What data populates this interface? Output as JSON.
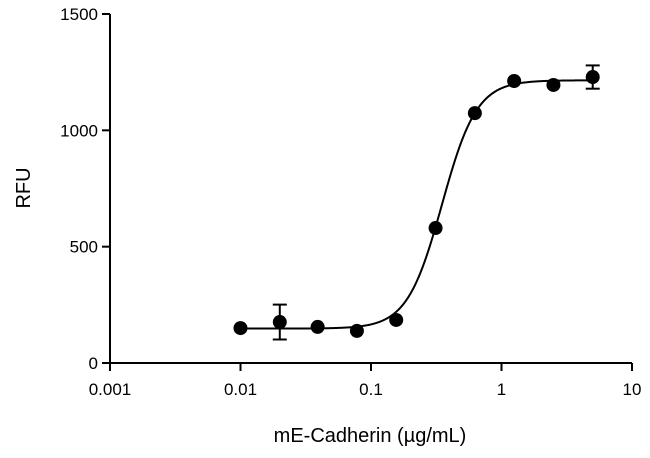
{
  "chart_data": {
    "type": "scatter",
    "xlabel": "mE-Cadherin (µg/mL)",
    "ylabel": "RFU",
    "x": [
      0.01,
      0.02,
      0.039,
      0.078,
      0.156,
      0.3125,
      0.625,
      1.25,
      2.5,
      5
    ],
    "series": [
      {
        "color": "#000000",
        "values": [
          150,
          176,
          155,
          138,
          185,
          580,
          1074,
          1212,
          1195,
          1229
        ],
        "errors": [
          null,
          75,
          null,
          null,
          null,
          null,
          null,
          null,
          null,
          50
        ]
      }
    ],
    "fit": {
      "bottom": 148,
      "top": 1215,
      "ec50": 0.35,
      "hill": 3.25
    },
    "xscale": "log",
    "xlim": [
      0.001,
      10
    ],
    "xticks": [
      0.001,
      0.01,
      0.1,
      1,
      10
    ],
    "ylim": [
      0,
      1500
    ],
    "yticks": [
      0,
      500,
      1000,
      1500
    ]
  }
}
